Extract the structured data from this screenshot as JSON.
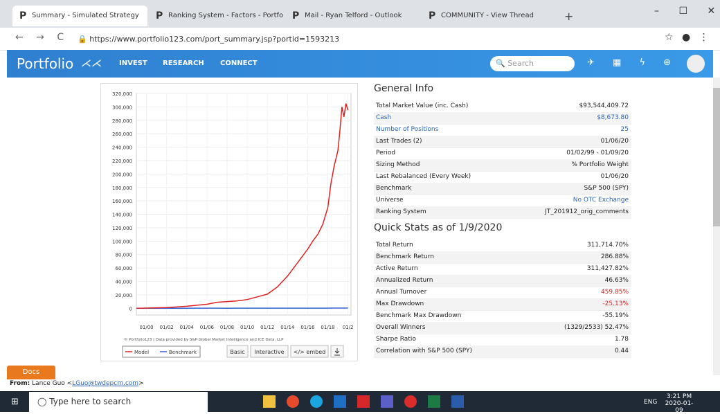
{
  "browser": {
    "tabs": [
      "Summary - Simulated Strategy",
      "Ranking System - Factors - Portfo",
      "Mail - Ryan Telford - Outlook",
      "COMMUNITY - View Thread"
    ],
    "url": "https://www.portfolio123.com/port_summary.jsp?portid=1593213"
  },
  "nav": {
    "logo": "Portfolio",
    "links": [
      "INVEST",
      "RESEARCH",
      "CONNECT"
    ],
    "search_placeholder": "Search"
  },
  "chart": {
    "type": "line",
    "x": [
      1999,
      2000,
      2001,
      2002,
      2003,
      2004,
      2005,
      2006,
      2007,
      2008,
      2009,
      2010,
      2011,
      2012,
      2013,
      2014,
      2015,
      2016,
      2016.5,
      2017,
      2017.5,
      2018,
      2018.3,
      2018.6,
      2019,
      2019.2,
      2019.4,
      2019.6,
      2019.8,
      2020
    ],
    "series": [
      {
        "name": "Model",
        "color": "#e02020",
        "values": [
          0,
          300,
          700,
          1000,
          2000,
          3000,
          4500,
          6000,
          9000,
          10000,
          11000,
          13000,
          17000,
          21000,
          32000,
          48000,
          68000,
          88000,
          100000,
          110000,
          125000,
          150000,
          185000,
          210000,
          235000,
          265000,
          300000,
          285000,
          305000,
          295000
        ]
      },
      {
        "name": "Benchmark",
        "color": "#3060d0",
        "values": [
          0,
          50,
          80,
          100,
          120,
          150,
          180,
          200,
          200,
          150,
          170,
          180,
          190,
          200,
          210,
          220,
          230,
          240,
          245,
          250,
          255,
          260,
          262,
          264,
          266,
          268,
          270,
          272,
          275,
          280
        ]
      }
    ],
    "xlim": [
      1999,
      2020.3
    ],
    "ylim": [
      -10000,
      320000
    ],
    "xticks": [
      {
        "value": 2000,
        "label": "01/00"
      },
      {
        "value": 2002,
        "label": "01/02"
      },
      {
        "value": 2004,
        "label": "01/04"
      },
      {
        "value": 2006,
        "label": "01/06"
      },
      {
        "value": 2008,
        "label": "01/08"
      },
      {
        "value": 2010,
        "label": "01/10"
      },
      {
        "value": 2012,
        "label": "01/12"
      },
      {
        "value": 2014,
        "label": "01/14"
      },
      {
        "value": 2016,
        "label": "01/16"
      },
      {
        "value": 2018,
        "label": "01/18"
      },
      {
        "value": 2020,
        "label": "01/2"
      }
    ],
    "yticks": [
      0,
      {
        "value": 20000,
        "label": "20,000"
      },
      {
        "value": 40000,
        "label": "40,000"
      },
      {
        "value": 60000,
        "label": "60,000"
      },
      {
        "value": 80000,
        "label": "80,000"
      },
      {
        "value": 100000,
        "label": "100,000"
      },
      {
        "value": 120000,
        "label": "120,000"
      },
      {
        "value": 140000,
        "label": "140,000"
      },
      {
        "value": 160000,
        "label": "160,000"
      },
      {
        "value": 180000,
        "label": "180,000"
      },
      {
        "value": 200000,
        "label": "200,000"
      },
      {
        "value": 220000,
        "label": "220,000"
      },
      {
        "value": 240000,
        "label": "240,000"
      },
      {
        "value": 260000,
        "label": "260,000"
      },
      {
        "value": 280000,
        "label": "280,000"
      },
      {
        "value": 300000,
        "label": "300,000"
      },
      {
        "value": 320000,
        "label": "320,000"
      }
    ],
    "footnote": "© Portfolio123 | Data provided by S&P Global Market Intelligence and ICE Data, LLP",
    "buttons": [
      "Basic",
      "Interactive",
      "</> embed"
    ]
  },
  "general_info": {
    "title": "General Info",
    "rows": [
      [
        "Total Market Value (inc. Cash)",
        "$93,544,409.72"
      ],
      [
        "Cash",
        "$8,673.80"
      ],
      [
        "Number of Positions",
        "25"
      ],
      [
        "Last Trades (2)",
        "01/06/20"
      ],
      [
        "Period",
        "01/02/99 - 01/09/20"
      ],
      [
        "Sizing Method",
        "% Portfolio Weight"
      ],
      [
        "Last Rebalanced (Every Week)",
        "01/06/20"
      ],
      [
        "Benchmark",
        "S&P 500 (SPY)"
      ],
      [
        "Universe",
        "No OTC Exchange"
      ],
      [
        "Ranking System",
        "JT_201912_orig_comments"
      ]
    ]
  },
  "quick_stats": {
    "title": "Quick Stats as of 1/9/2020",
    "rows": [
      [
        "Total Return",
        "311,714.70%"
      ],
      [
        "Benchmark Return",
        "286.88%"
      ],
      [
        "Active Return",
        "311,427.82%"
      ],
      [
        "Annualized Return",
        "46.63%"
      ],
      [
        "Annual Turnover",
        "459.85%"
      ],
      [
        "Max Drawdown",
        "-25.13%"
      ],
      [
        "Benchmark Max Drawdown",
        "-55.19%"
      ],
      [
        "Overall Winners",
        "(1329/2533) 52.47%"
      ],
      [
        "Sharpe Ratio",
        "1.78"
      ],
      [
        "Correlation with S&P 500 (SPY)",
        "0.44"
      ]
    ]
  },
  "docs": "Docs",
  "email_from": {
    "label": "From:",
    "text": "Lance Guo <",
    "email": "LGuo@twdepcm.com",
    "end": ">"
  },
  "taskbar": {
    "search": "Type here to search",
    "lang": "ENG",
    "time": "3:21 PM",
    "date": "2020-01-09"
  }
}
